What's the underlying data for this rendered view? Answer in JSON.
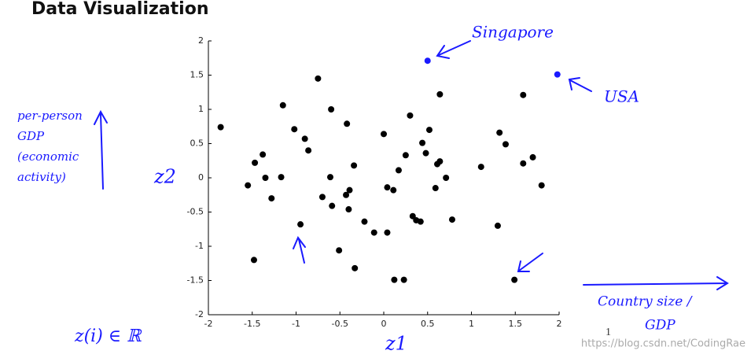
{
  "slide_title": "Data Visualization",
  "page_number": "1",
  "watermark": "https://blog.csdn.net/CodingRae",
  "chart_data": {
    "type": "scatter",
    "xlabel": "z1",
    "ylabel": "z2",
    "xlim": [
      -2,
      2
    ],
    "ylim": [
      -2,
      2
    ],
    "xticks": [
      -2,
      -1.5,
      -1,
      -0.5,
      0,
      0.5,
      1,
      1.5,
      2
    ],
    "yticks": [
      -2,
      -1.5,
      -1,
      -0.5,
      0,
      0.5,
      1,
      1.5,
      2
    ],
    "color": "#000000",
    "x": [
      -1.86,
      -1.55,
      -1.47,
      -1.38,
      -1.35,
      -1.28,
      -1.48,
      -1.17,
      -1.15,
      -1.02,
      -0.9,
      -0.86,
      -0.95,
      -0.75,
      -0.7,
      -0.61,
      -0.59,
      -0.6,
      -0.51,
      -0.42,
      -0.43,
      -0.39,
      -0.4,
      -0.34,
      -0.33,
      -0.22,
      -0.11,
      0.0,
      0.04,
      0.04,
      0.11,
      0.12,
      0.17,
      0.23,
      0.25,
      0.3,
      0.33,
      0.37,
      0.42,
      0.44,
      0.48,
      0.52,
      0.59,
      0.61,
      0.64,
      0.64,
      0.71,
      0.78,
      1.11,
      1.3,
      1.32,
      1.39,
      1.49,
      1.59,
      1.59,
      1.7,
      1.8
    ],
    "y": [
      0.74,
      -0.11,
      0.22,
      0.34,
      0.0,
      -0.3,
      -1.2,
      0.01,
      1.06,
      0.71,
      0.57,
      0.4,
      -0.68,
      1.45,
      -0.28,
      0.01,
      -0.41,
      1.0,
      -1.06,
      0.79,
      -0.25,
      -0.18,
      -0.46,
      0.18,
      -1.32,
      -0.64,
      -0.8,
      0.64,
      -0.14,
      -0.8,
      -0.18,
      -1.49,
      0.11,
      -1.49,
      0.33,
      0.91,
      -0.56,
      -0.62,
      -0.64,
      0.51,
      0.36,
      0.7,
      -0.15,
      0.2,
      0.24,
      1.22,
      0.0,
      -0.61,
      0.16,
      -0.7,
      0.66,
      0.49,
      -1.49,
      1.21,
      0.21,
      0.3,
      -0.11
    ],
    "annotations": [
      {
        "text": "Singapore",
        "x": 0.5,
        "y": 1.71,
        "color": "#1a1aff"
      },
      {
        "text": "USA",
        "x": 1.98,
        "y": 1.51,
        "color": "#1a1aff"
      }
    ],
    "y_note": [
      "per-person",
      "GDP",
      "(economic",
      "activity)"
    ],
    "x_note": [
      "Country size /",
      "GDP"
    ],
    "set_note": "z(i) ∈ ℝ"
  }
}
